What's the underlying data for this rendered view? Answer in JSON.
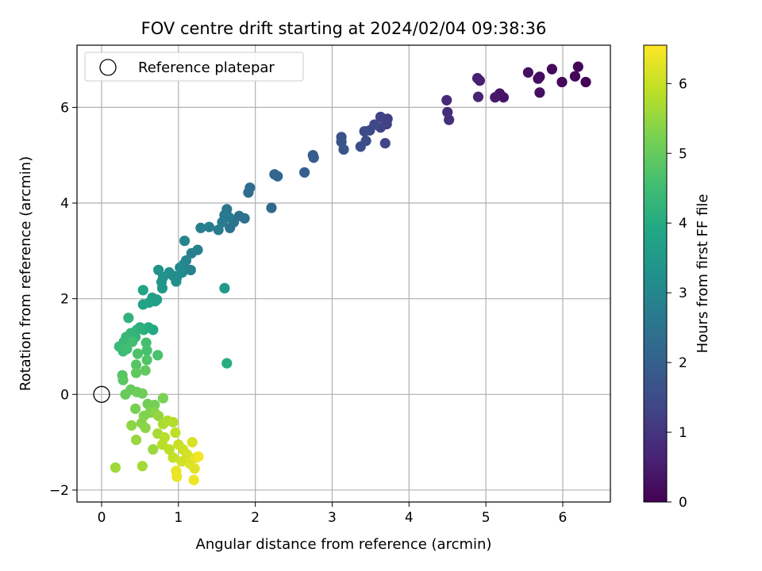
{
  "chart_data": {
    "type": "scatter",
    "title": "FOV centre drift starting at 2024/02/04 09:38:36",
    "xlabel": "Angular distance from reference (arcmin)",
    "ylabel": "Rotation from reference (arcmin)",
    "xlim": [
      -0.32,
      6.62
    ],
    "ylim": [
      -2.25,
      7.3
    ],
    "xticks": [
      0,
      1,
      2,
      3,
      4,
      5,
      6
    ],
    "yticks": [
      -2,
      0,
      2,
      4,
      6
    ],
    "grid": true,
    "legend": {
      "position": "top-left",
      "entries": [
        "Reference platepar"
      ]
    },
    "colorbar": {
      "label": "Hours from first FF file",
      "range": [
        0,
        6.55
      ],
      "ticks": [
        0,
        1,
        2,
        3,
        4,
        5,
        6
      ],
      "colormap": "viridis"
    },
    "reference_point": {
      "x": 0,
      "y": 0,
      "label": "Reference platepar"
    },
    "series": [
      {
        "points": [
          {
            "x": 6.3,
            "y": 6.53,
            "c": 0.05
          },
          {
            "x": 6.2,
            "y": 6.85,
            "c": 0.08
          },
          {
            "x": 6.16,
            "y": 6.65,
            "c": 0.1
          },
          {
            "x": 5.99,
            "y": 6.53,
            "c": 0.14
          },
          {
            "x": 5.86,
            "y": 6.8,
            "c": 0.16
          },
          {
            "x": 5.7,
            "y": 6.64,
            "c": 0.2
          },
          {
            "x": 5.68,
            "y": 6.6,
            "c": 0.23
          },
          {
            "x": 5.7,
            "y": 6.31,
            "c": 0.26
          },
          {
            "x": 5.55,
            "y": 6.73,
            "c": 0.28
          },
          {
            "x": 5.23,
            "y": 6.21,
            "c": 0.36
          },
          {
            "x": 5.18,
            "y": 6.29,
            "c": 0.4
          },
          {
            "x": 5.12,
            "y": 6.21,
            "c": 0.44
          },
          {
            "x": 4.92,
            "y": 6.56,
            "c": 0.55
          },
          {
            "x": 4.89,
            "y": 6.61,
            "c": 0.58
          },
          {
            "x": 4.9,
            "y": 6.22,
            "c": 0.62
          },
          {
            "x": 4.49,
            "y": 6.15,
            "c": 0.78
          },
          {
            "x": 4.5,
            "y": 5.9,
            "c": 0.82
          },
          {
            "x": 4.52,
            "y": 5.74,
            "c": 0.88
          },
          {
            "x": 3.72,
            "y": 5.76,
            "c": 1.2
          },
          {
            "x": 3.71,
            "y": 5.65,
            "c": 1.24
          },
          {
            "x": 3.63,
            "y": 5.8,
            "c": 1.28
          },
          {
            "x": 3.63,
            "y": 5.58,
            "c": 1.32
          },
          {
            "x": 3.69,
            "y": 5.25,
            "c": 1.36
          },
          {
            "x": 3.55,
            "y": 5.64,
            "c": 1.4
          },
          {
            "x": 3.49,
            "y": 5.52,
            "c": 1.44
          },
          {
            "x": 3.42,
            "y": 5.5,
            "c": 1.48
          },
          {
            "x": 3.44,
            "y": 5.3,
            "c": 1.52
          },
          {
            "x": 3.37,
            "y": 5.18,
            "c": 1.56
          },
          {
            "x": 3.12,
            "y": 5.38,
            "c": 1.65
          },
          {
            "x": 3.12,
            "y": 5.28,
            "c": 1.68
          },
          {
            "x": 3.15,
            "y": 5.12,
            "c": 1.72
          },
          {
            "x": 2.75,
            "y": 5.0,
            "c": 1.88
          },
          {
            "x": 2.76,
            "y": 4.95,
            "c": 1.92
          },
          {
            "x": 2.64,
            "y": 4.64,
            "c": 1.98
          },
          {
            "x": 2.25,
            "y": 4.6,
            "c": 2.12
          },
          {
            "x": 2.29,
            "y": 4.56,
            "c": 2.16
          },
          {
            "x": 2.21,
            "y": 3.9,
            "c": 2.22
          },
          {
            "x": 1.93,
            "y": 4.32,
            "c": 2.3
          },
          {
            "x": 1.91,
            "y": 4.22,
            "c": 2.34
          },
          {
            "x": 1.86,
            "y": 3.68,
            "c": 2.4
          },
          {
            "x": 1.79,
            "y": 3.73,
            "c": 2.44
          },
          {
            "x": 1.72,
            "y": 3.6,
            "c": 2.48
          },
          {
            "x": 1.67,
            "y": 3.48,
            "c": 2.52
          },
          {
            "x": 1.63,
            "y": 3.87,
            "c": 2.56
          },
          {
            "x": 1.6,
            "y": 3.75,
            "c": 2.6
          },
          {
            "x": 1.66,
            "y": 3.7,
            "c": 2.63
          },
          {
            "x": 1.57,
            "y": 3.6,
            "c": 2.66
          },
          {
            "x": 1.52,
            "y": 3.44,
            "c": 2.7
          },
          {
            "x": 1.4,
            "y": 3.5,
            "c": 2.74
          },
          {
            "x": 1.29,
            "y": 3.48,
            "c": 2.78
          },
          {
            "x": 1.25,
            "y": 3.02,
            "c": 2.82
          },
          {
            "x": 1.17,
            "y": 2.95,
            "c": 2.86
          },
          {
            "x": 1.16,
            "y": 2.6,
            "c": 2.9
          },
          {
            "x": 1.08,
            "y": 3.21,
            "c": 2.94
          },
          {
            "x": 1.1,
            "y": 2.8,
            "c": 2.98
          },
          {
            "x": 1.07,
            "y": 2.72,
            "c": 3.02
          },
          {
            "x": 1.05,
            "y": 2.55,
            "c": 3.06
          },
          {
            "x": 1.02,
            "y": 2.65,
            "c": 3.1
          },
          {
            "x": 0.98,
            "y": 2.45,
            "c": 3.14
          },
          {
            "x": 0.93,
            "y": 2.48,
            "c": 3.18
          },
          {
            "x": 0.88,
            "y": 2.55,
            "c": 3.22
          },
          {
            "x": 0.97,
            "y": 2.36,
            "c": 3.26
          },
          {
            "x": 0.8,
            "y": 2.45,
            "c": 3.3
          },
          {
            "x": 0.74,
            "y": 2.6,
            "c": 3.34
          },
          {
            "x": 0.78,
            "y": 2.35,
            "c": 3.38
          },
          {
            "x": 0.79,
            "y": 2.22,
            "c": 3.42
          },
          {
            "x": 1.6,
            "y": 2.22,
            "c": 3.5
          },
          {
            "x": 0.7,
            "y": 1.95,
            "c": 3.62
          },
          {
            "x": 0.66,
            "y": 2.02,
            "c": 3.66
          },
          {
            "x": 0.72,
            "y": 1.98,
            "c": 3.7
          },
          {
            "x": 0.62,
            "y": 1.92,
            "c": 3.74
          },
          {
            "x": 0.54,
            "y": 1.88,
            "c": 3.78
          },
          {
            "x": 0.54,
            "y": 2.18,
            "c": 3.82
          },
          {
            "x": 0.67,
            "y": 1.35,
            "c": 3.95
          },
          {
            "x": 0.61,
            "y": 1.4,
            "c": 4.0
          },
          {
            "x": 1.63,
            "y": 0.65,
            "c": 4.05
          },
          {
            "x": 0.55,
            "y": 1.35,
            "c": 4.1
          },
          {
            "x": 0.5,
            "y": 1.4,
            "c": 4.14
          },
          {
            "x": 0.46,
            "y": 1.35,
            "c": 4.18
          },
          {
            "x": 0.35,
            "y": 1.6,
            "c": 4.22
          },
          {
            "x": 0.44,
            "y": 1.2,
            "c": 4.26
          },
          {
            "x": 0.38,
            "y": 1.28,
            "c": 4.3
          },
          {
            "x": 0.32,
            "y": 1.2,
            "c": 4.34
          },
          {
            "x": 0.29,
            "y": 1.1,
            "c": 4.38
          },
          {
            "x": 0.23,
            "y": 1.0,
            "c": 4.42
          },
          {
            "x": 0.28,
            "y": 0.9,
            "c": 4.46
          },
          {
            "x": 0.33,
            "y": 0.95,
            "c": 4.5
          },
          {
            "x": 0.4,
            "y": 1.1,
            "c": 4.54
          },
          {
            "x": 0.58,
            "y": 1.08,
            "c": 4.58
          },
          {
            "x": 0.59,
            "y": 0.92,
            "c": 4.62
          },
          {
            "x": 0.73,
            "y": 0.82,
            "c": 4.66
          },
          {
            "x": 0.47,
            "y": 0.85,
            "c": 4.7
          },
          {
            "x": 0.59,
            "y": 0.72,
            "c": 4.74
          },
          {
            "x": 0.45,
            "y": 0.62,
            "c": 4.78
          },
          {
            "x": 0.27,
            "y": 0.4,
            "c": 4.82
          },
          {
            "x": 0.28,
            "y": 0.3,
            "c": 4.86
          },
          {
            "x": 0.45,
            "y": 0.45,
            "c": 4.9
          },
          {
            "x": 0.57,
            "y": 0.5,
            "c": 4.94
          },
          {
            "x": 0.38,
            "y": 0.1,
            "c": 4.98
          },
          {
            "x": 0.31,
            "y": 0.0,
            "c": 5.02
          },
          {
            "x": 0.46,
            "y": 0.05,
            "c": 5.06
          },
          {
            "x": 0.53,
            "y": 0.02,
            "c": 5.1
          },
          {
            "x": 0.6,
            "y": -0.2,
            "c": 5.14
          },
          {
            "x": 0.69,
            "y": -0.22,
            "c": 5.18
          },
          {
            "x": 0.44,
            "y": -0.3,
            "c": 5.2
          },
          {
            "x": 0.8,
            "y": -0.08,
            "c": 5.24
          },
          {
            "x": 0.63,
            "y": -0.38,
            "c": 5.28
          },
          {
            "x": 0.55,
            "y": -0.45,
            "c": 5.32
          },
          {
            "x": 0.69,
            "y": -0.38,
            "c": 5.36
          },
          {
            "x": 0.52,
            "y": -0.6,
            "c": 5.38
          },
          {
            "x": 0.57,
            "y": -0.7,
            "c": 5.4
          },
          {
            "x": 0.39,
            "y": -0.65,
            "c": 5.44
          },
          {
            "x": 0.74,
            "y": -0.45,
            "c": 5.48
          },
          {
            "x": 0.45,
            "y": -0.95,
            "c": 5.52
          },
          {
            "x": 0.67,
            "y": -1.15,
            "c": 5.56
          },
          {
            "x": 0.18,
            "y": -1.53,
            "c": 5.6
          },
          {
            "x": 0.53,
            "y": -1.5,
            "c": 5.64
          },
          {
            "x": 0.73,
            "y": -0.82,
            "c": 5.68
          },
          {
            "x": 0.8,
            "y": -0.62,
            "c": 5.72
          },
          {
            "x": 0.86,
            "y": -0.55,
            "c": 5.76
          },
          {
            "x": 0.93,
            "y": -0.58,
            "c": 5.8
          },
          {
            "x": 0.82,
            "y": -0.9,
            "c": 5.84
          },
          {
            "x": 0.79,
            "y": -1.05,
            "c": 5.86
          },
          {
            "x": 0.88,
            "y": -1.15,
            "c": 5.9
          },
          {
            "x": 0.96,
            "y": -0.8,
            "c": 5.92
          },
          {
            "x": 0.93,
            "y": -1.32,
            "c": 5.96
          },
          {
            "x": 1.0,
            "y": -1.05,
            "c": 6.0
          },
          {
            "x": 1.06,
            "y": -1.15,
            "c": 6.04
          },
          {
            "x": 1.04,
            "y": -1.4,
            "c": 6.08
          },
          {
            "x": 1.11,
            "y": -1.25,
            "c": 6.12
          },
          {
            "x": 1.18,
            "y": -1.0,
            "c": 6.16
          },
          {
            "x": 1.15,
            "y": -1.45,
            "c": 6.2
          },
          {
            "x": 1.21,
            "y": -1.55,
            "c": 6.24
          },
          {
            "x": 1.23,
            "y": -1.32,
            "c": 6.28
          },
          {
            "x": 0.97,
            "y": -1.6,
            "c": 6.32
          },
          {
            "x": 0.98,
            "y": -1.72,
            "c": 6.36
          },
          {
            "x": 1.2,
            "y": -1.79,
            "c": 6.4
          },
          {
            "x": 1.26,
            "y": -1.3,
            "c": 6.45
          }
        ]
      }
    ]
  }
}
